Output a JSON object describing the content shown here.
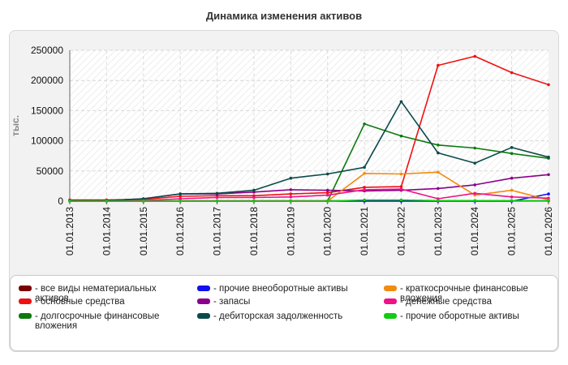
{
  "title": "Динамика изменения активов",
  "chart_data": {
    "type": "line",
    "title": "Динамика изменения активов",
    "ylabel": "тыс.",
    "xlabel": "",
    "ylim": [
      0,
      250000
    ],
    "y_ticks": [
      "0",
      "50000",
      "100000",
      "150000",
      "200000",
      "250000"
    ],
    "y_tick_values": [
      0,
      50000,
      100000,
      150000,
      200000,
      250000
    ],
    "x": [
      "01.01.2013",
      "01.01.2014",
      "01.01.2015",
      "01.01.2016",
      "01.01.2017",
      "01.01.2018",
      "01.01.2019",
      "01.01.2020",
      "01.01.2021",
      "01.01.2022",
      "01.01.2023",
      "01.01.2024",
      "01.01.2025",
      "01.01.2026"
    ],
    "grid": true,
    "legend_position": "bottom",
    "series": [
      {
        "name": "все виды нематериальных активов",
        "color": "#7a0000",
        "values": [
          0,
          0,
          0,
          500,
          500,
          500,
          500,
          500,
          500,
          500,
          500,
          500,
          500,
          500
        ]
      },
      {
        "name": "основные средства",
        "color": "#ee1111",
        "values": [
          2000,
          2000,
          3000,
          8000,
          9000,
          9000,
          12000,
          14000,
          23000,
          24000,
          225000,
          240000,
          213000,
          193000
        ]
      },
      {
        "name": "долгосрочные финансовые вложения",
        "color": "#0b7a0b",
        "values": [
          0,
          0,
          0,
          0,
          0,
          0,
          0,
          0,
          128000,
          108000,
          93000,
          88000,
          79000,
          71000
        ]
      },
      {
        "name": "прочие внеоборотные активы",
        "color": "#1111ee",
        "values": [
          0,
          0,
          0,
          0,
          0,
          0,
          0,
          0,
          0,
          0,
          0,
          0,
          0,
          12000
        ]
      },
      {
        "name": "запасы",
        "color": "#8b008b",
        "values": [
          1000,
          1000,
          4000,
          12000,
          12000,
          15000,
          19000,
          18000,
          17000,
          18000,
          21000,
          27000,
          38000,
          44000
        ]
      },
      {
        "name": "дебиторская задолженность",
        "color": "#0b4a4a",
        "values": [
          1000,
          1000,
          4000,
          12000,
          13000,
          18000,
          38000,
          45000,
          56000,
          165000,
          80000,
          63000,
          89000,
          73000
        ]
      },
      {
        "name": "краткосрочные финансовые вложения",
        "color": "#f08c10",
        "values": [
          0,
          0,
          0,
          0,
          0,
          0,
          0,
          0,
          46000,
          45000,
          48000,
          10000,
          18000,
          2000
        ]
      },
      {
        "name": "денежные средства",
        "color": "#ee1188",
        "values": [
          0,
          0,
          1000,
          4000,
          6000,
          6000,
          7000,
          10000,
          19000,
          20000,
          4000,
          13000,
          7000,
          5000
        ]
      },
      {
        "name": "прочие оборотные активы",
        "color": "#11cc11",
        "values": [
          0,
          0,
          0,
          0,
          0,
          0,
          0,
          0,
          2000,
          2000,
          1000,
          1000,
          1000,
          1000
        ]
      }
    ]
  }
}
